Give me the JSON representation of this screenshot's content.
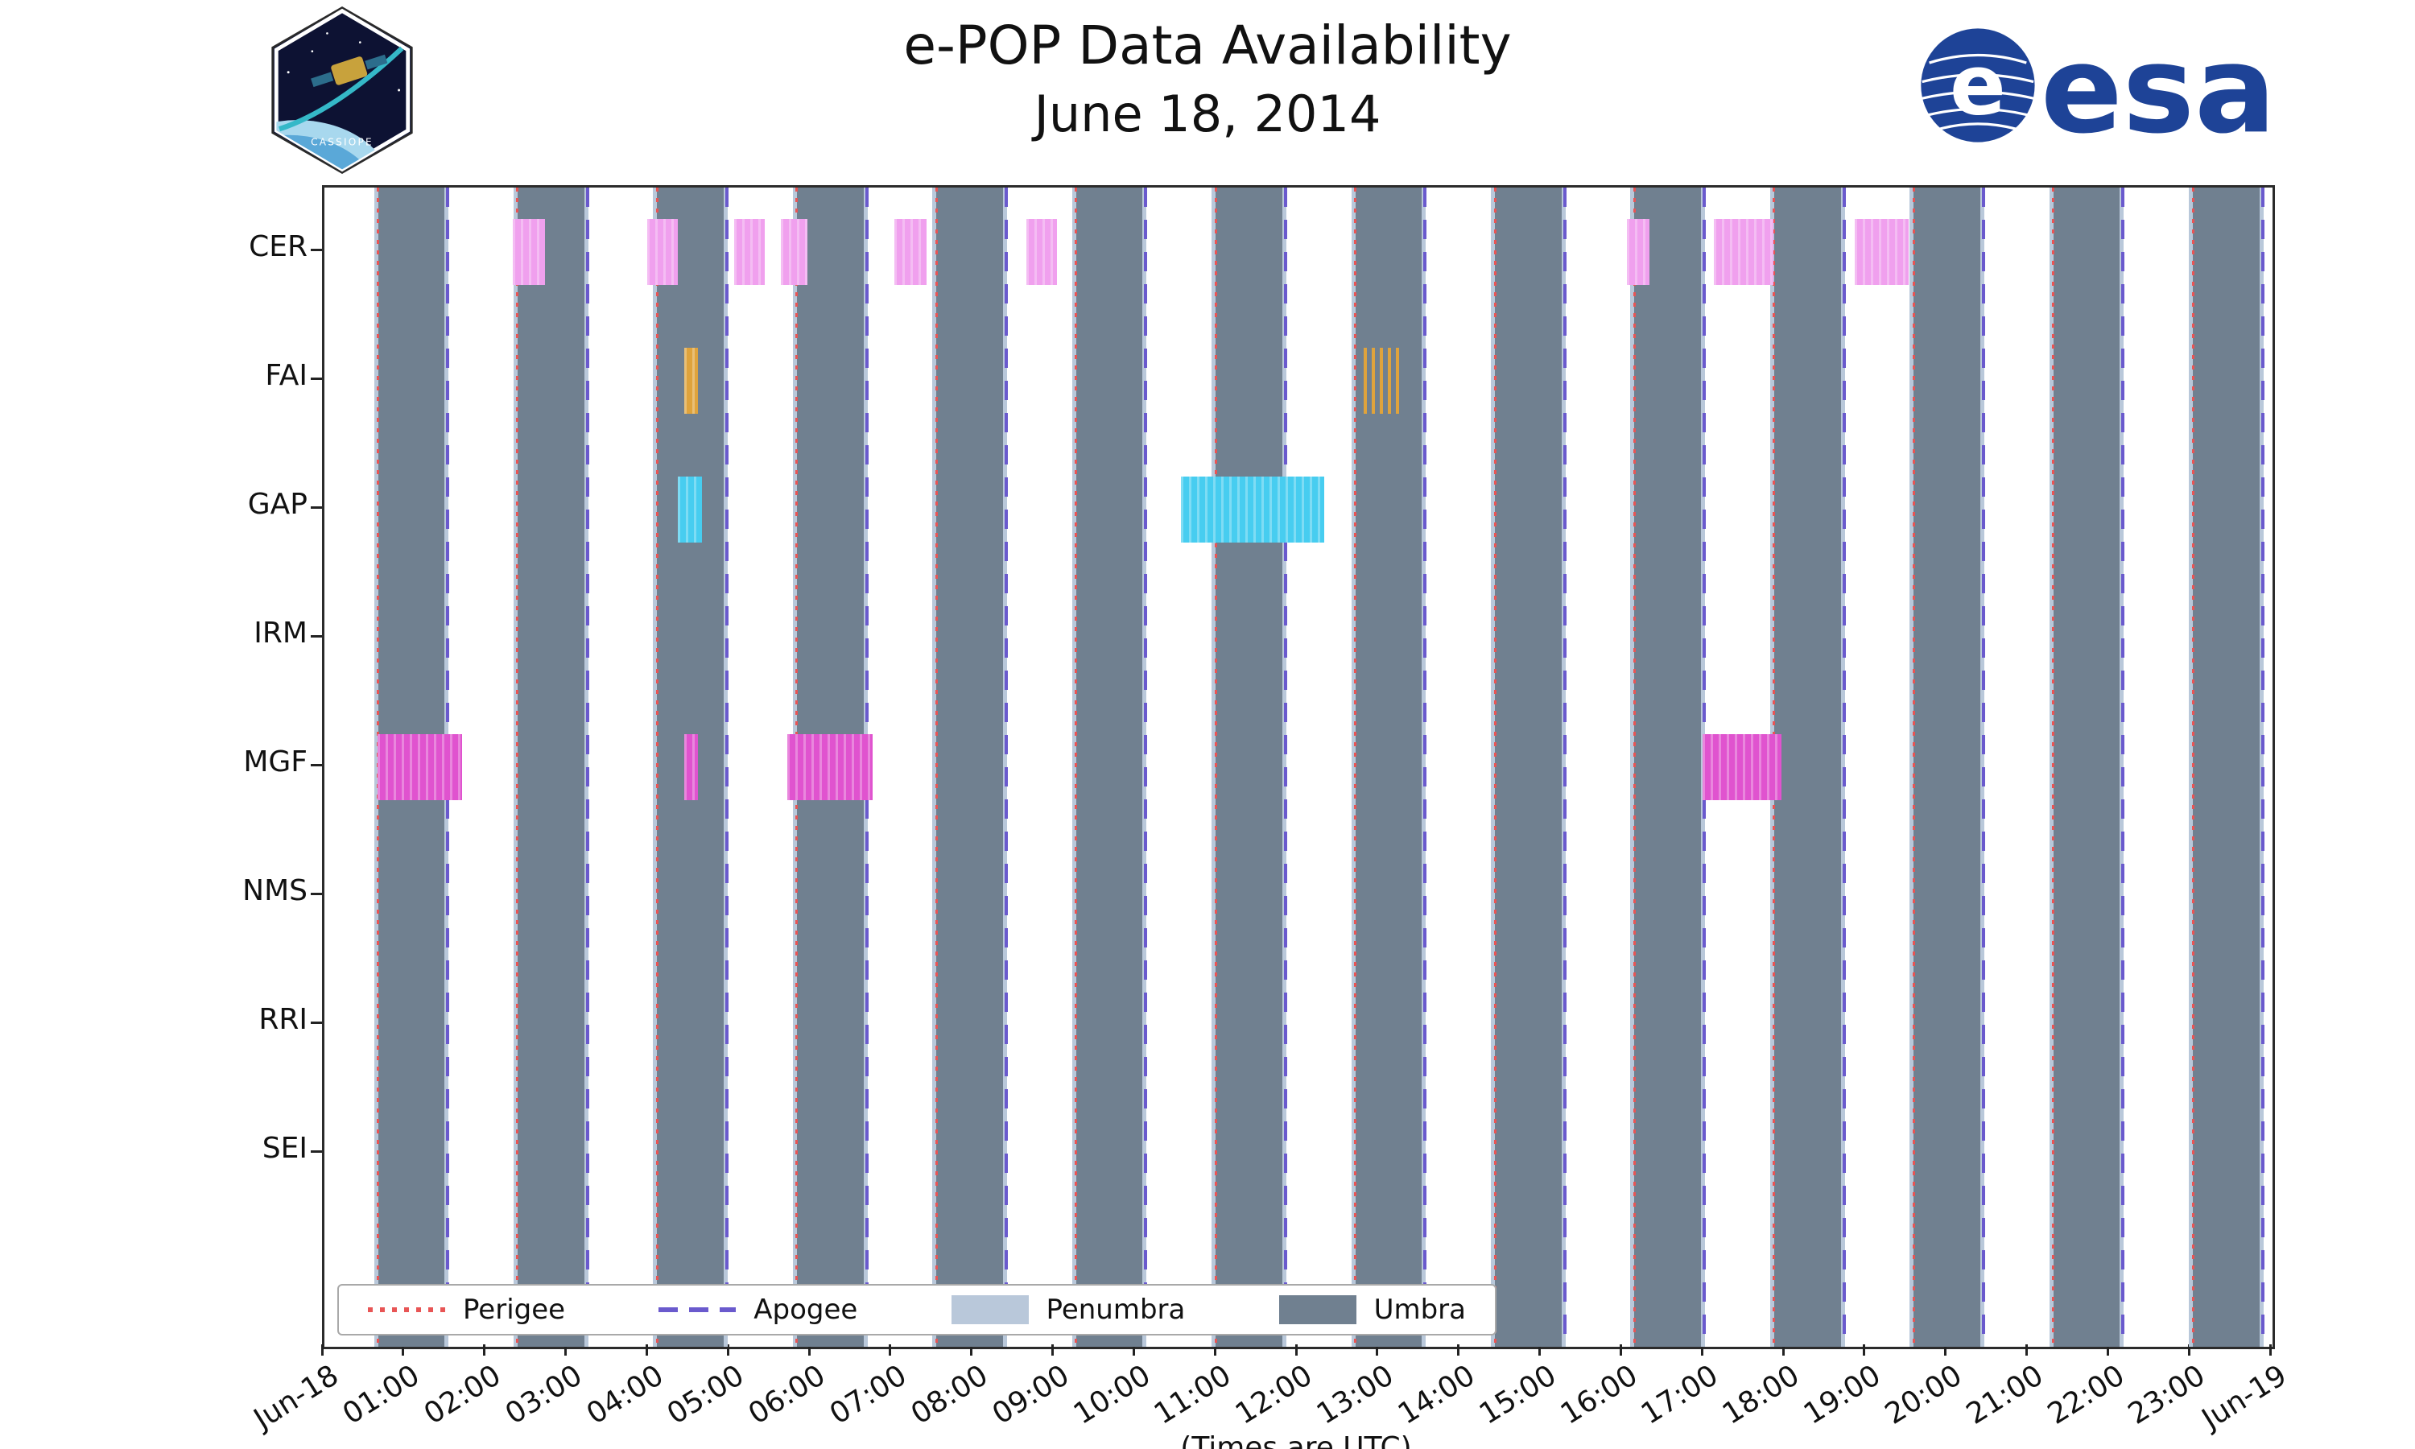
{
  "header": {
    "title": "e-POP Data Availability",
    "subtitle": "June 18, 2014",
    "cassiope_label": "CASSIOPE",
    "esa_label": "esa"
  },
  "chart_data": {
    "type": "timeline",
    "title": "e-POP Data Availability",
    "subtitle": "June 18, 2014",
    "xlabel": "(Times are UTC)",
    "x_range_hours": [
      0,
      24
    ],
    "x_ticks": [
      {
        "h": 0,
        "label": "Jun-18"
      },
      {
        "h": 1,
        "label": "01:00"
      },
      {
        "h": 2,
        "label": "02:00"
      },
      {
        "h": 3,
        "label": "03:00"
      },
      {
        "h": 4,
        "label": "04:00"
      },
      {
        "h": 5,
        "label": "05:00"
      },
      {
        "h": 6,
        "label": "06:00"
      },
      {
        "h": 7,
        "label": "07:00"
      },
      {
        "h": 8,
        "label": "08:00"
      },
      {
        "h": 9,
        "label": "09:00"
      },
      {
        "h": 10,
        "label": "10:00"
      },
      {
        "h": 11,
        "label": "11:00"
      },
      {
        "h": 12,
        "label": "12:00"
      },
      {
        "h": 13,
        "label": "13:00"
      },
      {
        "h": 14,
        "label": "14:00"
      },
      {
        "h": 15,
        "label": "15:00"
      },
      {
        "h": 16,
        "label": "16:00"
      },
      {
        "h": 17,
        "label": "17:00"
      },
      {
        "h": 18,
        "label": "18:00"
      },
      {
        "h": 19,
        "label": "19:00"
      },
      {
        "h": 20,
        "label": "20:00"
      },
      {
        "h": 21,
        "label": "21:00"
      },
      {
        "h": 22,
        "label": "22:00"
      },
      {
        "h": 23,
        "label": "23:00"
      },
      {
        "h": 24,
        "label": "Jun-19"
      }
    ],
    "instruments": [
      "CER",
      "FAI",
      "GAP",
      "IRM",
      "MGF",
      "NMS",
      "RRI",
      "SEI"
    ],
    "colors": {
      "CER": "#f0a0ee",
      "FAI": "#dfa33c",
      "GAP": "#47cdf0",
      "MGF": "#e053cf",
      "umbra": "#708090",
      "penumbra": "#b9c8da",
      "perigee": "#e85555",
      "apogee": "#6a5acd"
    },
    "perigee_hours": [
      0.66,
      2.38,
      4.1,
      5.82,
      7.54,
      9.26,
      10.98,
      12.7,
      14.42,
      16.14,
      17.86,
      19.58,
      21.3,
      23.02
    ],
    "apogee_hours": [
      1.52,
      3.24,
      4.96,
      6.68,
      8.4,
      10.12,
      11.84,
      13.56,
      15.28,
      17.0,
      18.72,
      20.44,
      22.16,
      23.88
    ],
    "umbra_intervals": [
      [
        0.66,
        1.48
      ],
      [
        2.38,
        3.2
      ],
      [
        4.1,
        4.92
      ],
      [
        5.82,
        6.64
      ],
      [
        7.54,
        8.36
      ],
      [
        9.26,
        10.08
      ],
      [
        10.98,
        11.8
      ],
      [
        12.7,
        13.52
      ],
      [
        14.42,
        15.24
      ],
      [
        16.14,
        16.96
      ],
      [
        17.86,
        18.68
      ],
      [
        19.58,
        20.4
      ],
      [
        21.3,
        22.12
      ],
      [
        23.02,
        23.84
      ]
    ],
    "penumbra_margin_hours": 0.05,
    "availability": {
      "CER": [
        {
          "s": 2.32,
          "e": 2.72
        },
        {
          "s": 3.98,
          "e": 4.35
        },
        {
          "s": 5.05,
          "e": 5.42
        },
        {
          "s": 5.62,
          "e": 5.95
        },
        {
          "s": 7.02,
          "e": 7.42
        },
        {
          "s": 8.65,
          "e": 9.02
        },
        {
          "s": 16.05,
          "e": 16.32
        },
        {
          "s": 17.12,
          "e": 17.85
        },
        {
          "s": 18.85,
          "e": 19.52
        }
      ],
      "FAI": [
        {
          "s": 4.43,
          "e": 4.6
        },
        {
          "s": 12.8,
          "e": 13.28,
          "hatch": true
        }
      ],
      "GAP": [
        {
          "s": 4.35,
          "e": 4.65
        },
        {
          "s": 10.55,
          "e": 12.32
        }
      ],
      "IRM": [],
      "MGF": [
        {
          "s": 0.65,
          "e": 1.7
        },
        {
          "s": 4.43,
          "e": 4.6
        },
        {
          "s": 5.7,
          "e": 6.75
        },
        {
          "s": 16.98,
          "e": 17.95
        }
      ],
      "NMS": [],
      "RRI": [],
      "SEI": []
    },
    "legend": [
      {
        "label": "Perigee",
        "style": "perigee"
      },
      {
        "label": "Apogee",
        "style": "apogee"
      },
      {
        "label": "Penumbra",
        "style": "penumbra"
      },
      {
        "label": "Umbra",
        "style": "umbra"
      }
    ]
  }
}
